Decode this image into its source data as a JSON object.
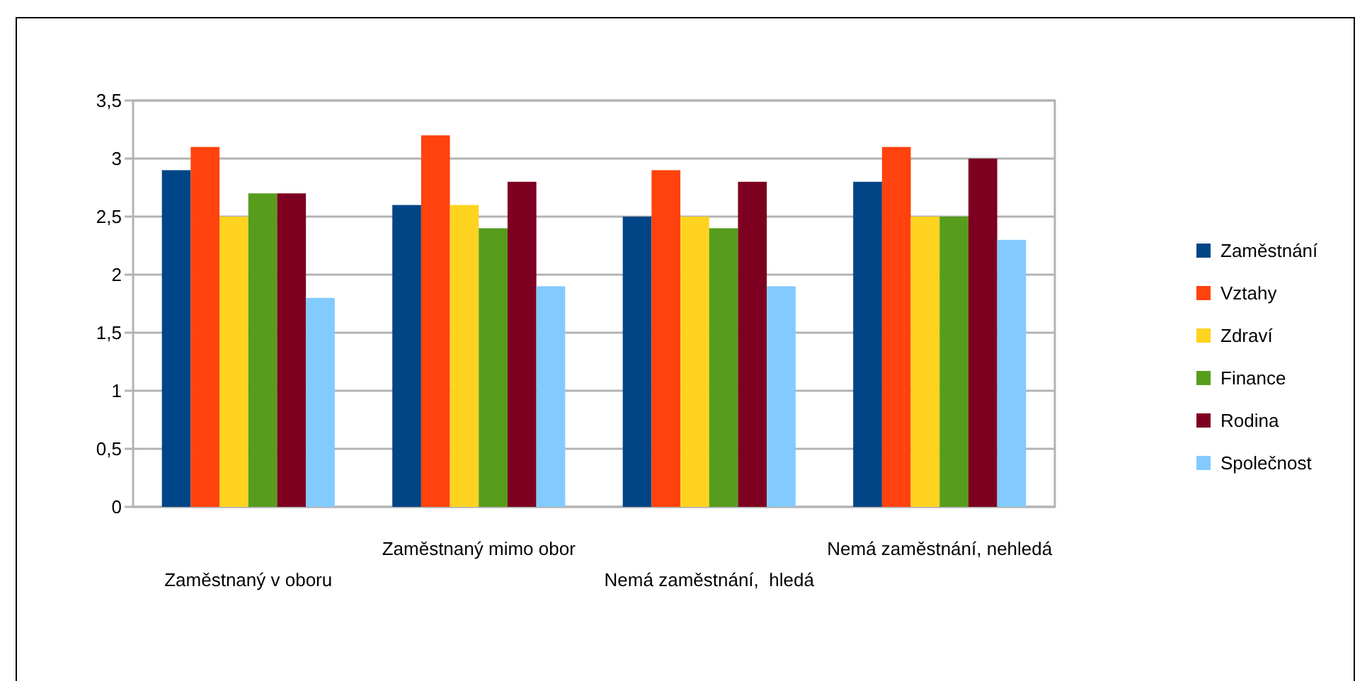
{
  "chart_data": {
    "type": "bar",
    "categories": [
      "Zaměstnaný v oboru",
      "Zaměstnaný mimo obor",
      "Nemá zaměstnání,  hledá",
      "Nemá zaměstnání, nehledá"
    ],
    "series": [
      {
        "name": "Zaměstnání",
        "color": "#004586",
        "values": [
          2.9,
          2.6,
          2.5,
          2.8
        ]
      },
      {
        "name": "Vztahy",
        "color": "#ff420e",
        "values": [
          3.1,
          3.2,
          2.9,
          3.1
        ]
      },
      {
        "name": "Zdraví",
        "color": "#ffd320",
        "values": [
          2.5,
          2.6,
          2.5,
          2.5
        ]
      },
      {
        "name": "Finance",
        "color": "#579d1c",
        "values": [
          2.7,
          2.4,
          2.4,
          2.5
        ]
      },
      {
        "name": "Rodina",
        "color": "#7e0021",
        "values": [
          2.7,
          2.8,
          2.8,
          3.0
        ]
      },
      {
        "name": "Společnost",
        "color": "#83caff",
        "values": [
          1.8,
          1.9,
          1.9,
          2.3
        ]
      }
    ],
    "ylim": [
      0,
      3.5
    ],
    "yticks": [
      0,
      {
        "value": 0.5,
        "label": "0,5"
      },
      1,
      {
        "value": 1.5,
        "label": "1,5"
      },
      2,
      {
        "value": 2.5,
        "label": "2,5"
      },
      3,
      {
        "value": 3.5,
        "label": "3,5"
      }
    ],
    "grid": "y",
    "legend": "right"
  }
}
